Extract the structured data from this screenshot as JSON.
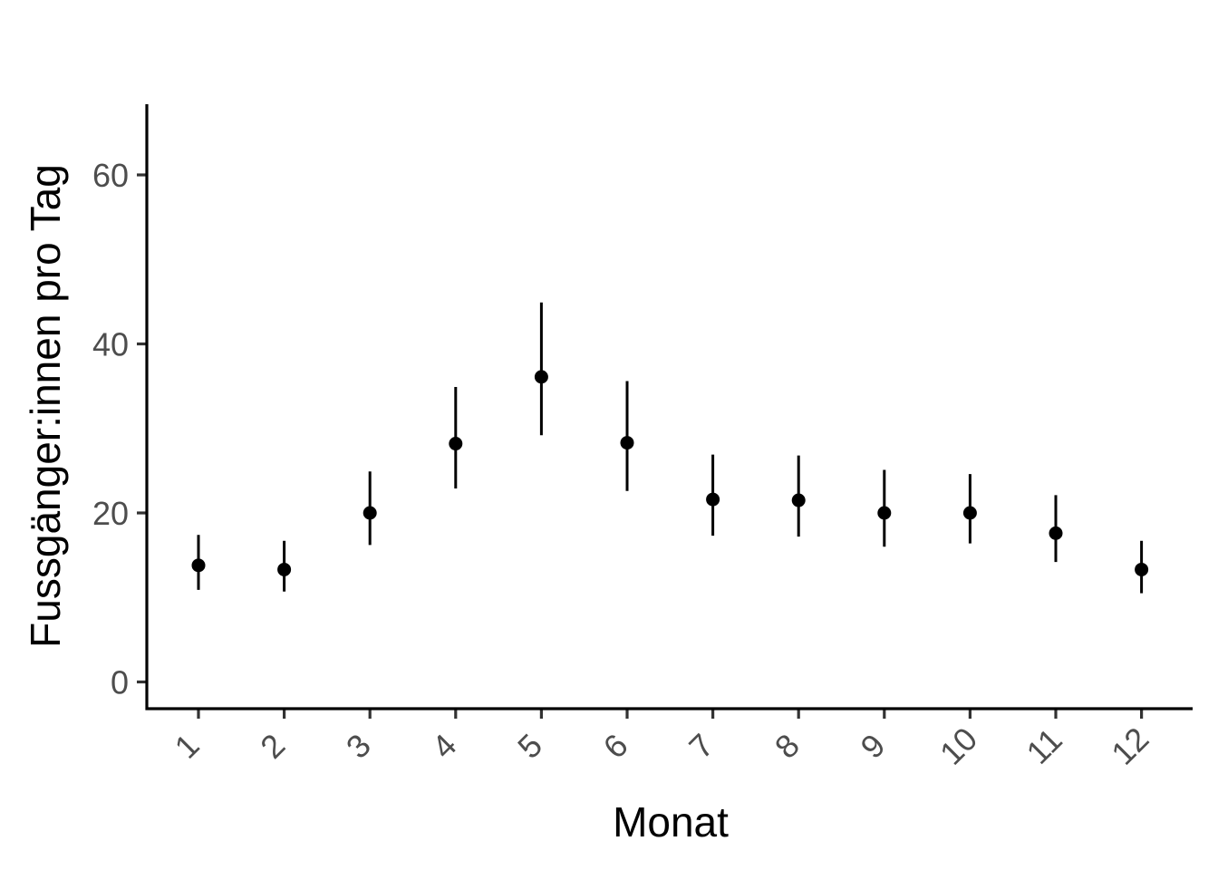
{
  "chart_data": {
    "type": "scatter",
    "title": "",
    "xlabel": "Monat",
    "ylabel": "Fussgänger:innen pro Tag",
    "x": [
      "1",
      "2",
      "3",
      "4",
      "5",
      "6",
      "7",
      "8",
      "9",
      "10",
      "11",
      "12"
    ],
    "series": [
      {
        "values": [
          13.8,
          13.3,
          20.0,
          28.2,
          36.1,
          28.3,
          21.6,
          21.5,
          20.0,
          20.0,
          17.6,
          13.3
        ],
        "lower": [
          10.9,
          10.7,
          16.2,
          22.9,
          29.2,
          22.6,
          17.3,
          17.2,
          16.0,
          16.4,
          14.2,
          10.5
        ],
        "upper": [
          17.4,
          16.7,
          24.9,
          34.9,
          44.9,
          35.6,
          26.9,
          26.8,
          25.1,
          24.6,
          22.1,
          16.7
        ]
      }
    ],
    "yticks": [
      0,
      20,
      40,
      60
    ],
    "ytick_labels": [
      "0",
      "20",
      "40",
      "60"
    ],
    "ylim": [
      -3.2,
      68
    ],
    "x_tick_rotation": 45,
    "grid": false,
    "legend": "none",
    "colors": {
      "points": "#000000",
      "axis": "#000000",
      "tick_text": "#4d4d4d"
    }
  }
}
